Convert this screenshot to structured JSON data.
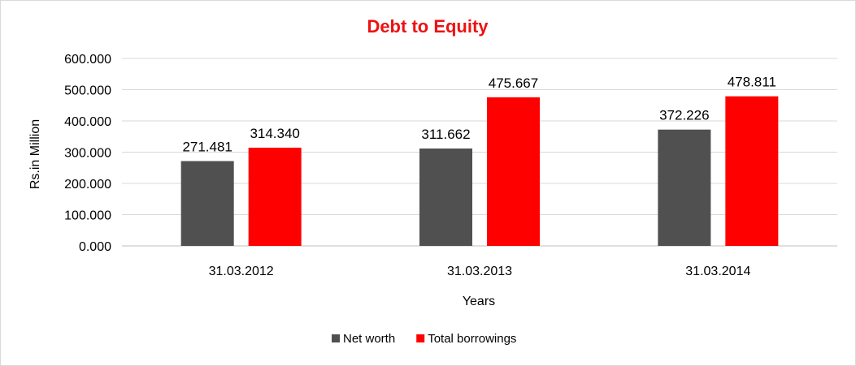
{
  "chart_data": {
    "type": "bar",
    "title": "Debt to Equity",
    "title_color": "#ee1111",
    "xlabel": "Years",
    "ylabel": "Rs.in Million",
    "categories": [
      "31.03.2012",
      "31.03.2013",
      "31.03.2014"
    ],
    "series": [
      {
        "name": "Net worth",
        "values": [
          271.481,
          311.662,
          372.226
        ],
        "labels": [
          "271.481",
          "311.662",
          "372.226"
        ],
        "color": "#505050"
      },
      {
        "name": "Total borrowings",
        "values": [
          314.34,
          475.667,
          478.811
        ],
        "labels": [
          "314.340",
          "475.667",
          "478.811"
        ],
        "color": "#ff0000"
      }
    ],
    "ylim": [
      0,
      600
    ],
    "yticks": [
      0,
      100,
      200,
      300,
      400,
      500,
      600
    ],
    "ytick_labels": [
      "0.000",
      "100.000",
      "200.000",
      "300.000",
      "400.000",
      "500.000",
      "600.000"
    ],
    "grid": true,
    "legend_position": "bottom"
  }
}
